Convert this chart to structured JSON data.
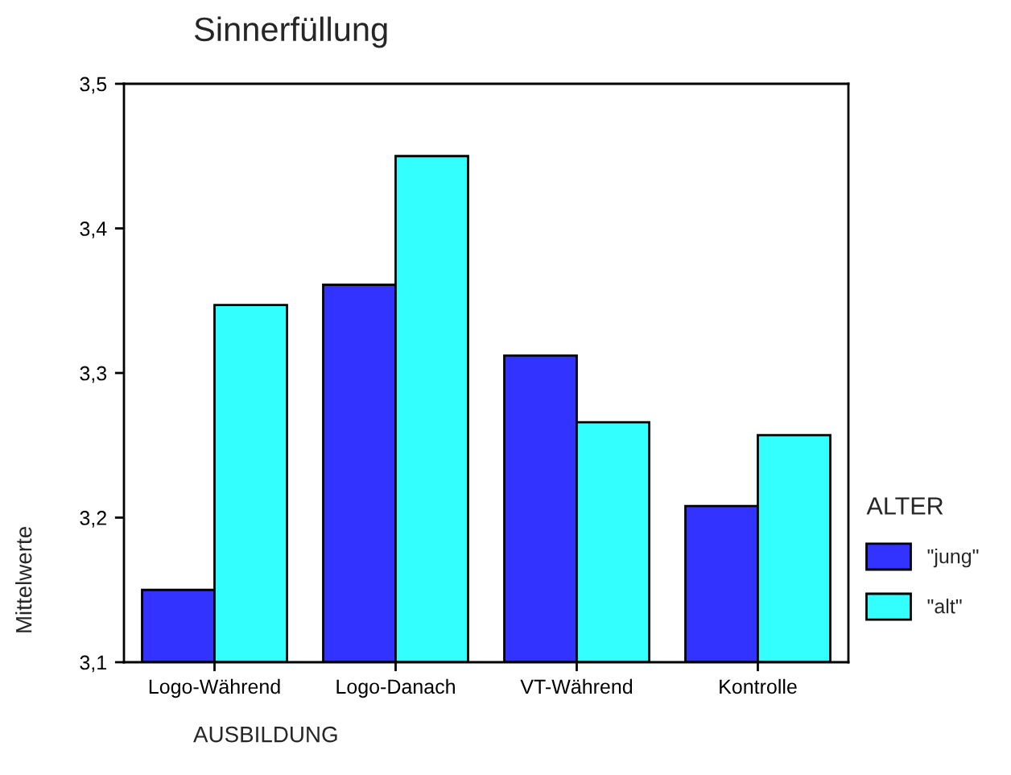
{
  "chart_data": {
    "type": "bar",
    "title": "Sinnerfüllung",
    "xlabel": "AUSBILDUNG",
    "ylabel": "Mittelwerte",
    "legend_title": "ALTER",
    "categories": [
      "Logo-Während",
      "Logo-Danach",
      "VT-Während",
      "Kontrolle"
    ],
    "series": [
      {
        "name": "\"jung\"",
        "color": "#3333ff",
        "values": [
          3.15,
          3.361,
          3.312,
          3.208
        ]
      },
      {
        "name": "\"alt\"",
        "color": "#33ffff",
        "values": [
          3.347,
          3.45,
          3.266,
          3.257
        ]
      }
    ],
    "ylim": [
      3.1,
      3.5
    ],
    "yticks": [
      {
        "value": 3.1,
        "label": "3,1"
      },
      {
        "value": 3.2,
        "label": "3,2"
      },
      {
        "value": 3.3,
        "label": "3,3"
      },
      {
        "value": 3.4,
        "label": "3,4"
      },
      {
        "value": 3.5,
        "label": "3,5"
      }
    ],
    "grid": false,
    "legend": "right"
  }
}
